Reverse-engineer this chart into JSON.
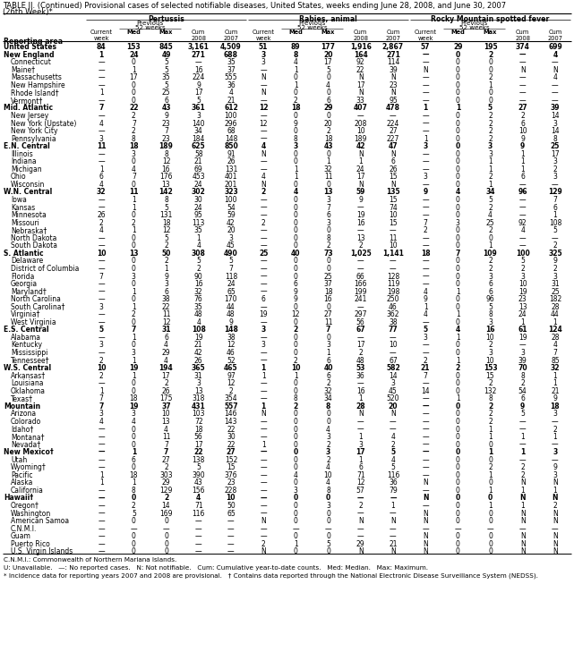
{
  "title1": "TABLE II. (Continued) Provisional cases of selected notifiable diseases, United States, weeks ending June 28, 2008, and June 30, 2007",
  "title2": "(26th Week)*",
  "rows": [
    [
      "United States",
      "84",
      "153",
      "845",
      "3,161",
      "4,509",
      "51",
      "89",
      "177",
      "1,916",
      "2,867",
      "57",
      "29",
      "195",
      "374",
      "699"
    ],
    [
      "New England",
      "1",
      "24",
      "49",
      "271",
      "688",
      "3",
      "8",
      "20",
      "164",
      "271",
      "—",
      "0",
      "2",
      "—",
      "4"
    ],
    [
      "Connecticut",
      "—",
      "0",
      "5",
      "—",
      "35",
      "3",
      "4",
      "17",
      "92",
      "114",
      "—",
      "0",
      "0",
      "—",
      "—"
    ],
    [
      "Maine†",
      "—",
      "1",
      "5",
      "16",
      "37",
      "—",
      "1",
      "5",
      "22",
      "39",
      "N",
      "0",
      "0",
      "N",
      "N"
    ],
    [
      "Massachusetts",
      "—",
      "17",
      "35",
      "224",
      "555",
      "N",
      "0",
      "0",
      "N",
      "N",
      "—",
      "0",
      "2",
      "—",
      "4"
    ],
    [
      "New Hampshire",
      "—",
      "0",
      "5",
      "9",
      "36",
      "—",
      "1",
      "4",
      "17",
      "23",
      "—",
      "0",
      "1",
      "—",
      "—"
    ],
    [
      "Rhode Island†",
      "1",
      "0",
      "25",
      "17",
      "4",
      "N",
      "0",
      "0",
      "N",
      "N",
      "—",
      "0",
      "0",
      "—",
      "—"
    ],
    [
      "Vermont†",
      "—",
      "0",
      "6",
      "5",
      "21",
      "—",
      "2",
      "6",
      "33",
      "95",
      "—",
      "0",
      "0",
      "—",
      "—"
    ],
    [
      "Mid. Atlantic",
      "7",
      "22",
      "43",
      "361",
      "612",
      "12",
      "18",
      "29",
      "407",
      "478",
      "1",
      "1",
      "5",
      "27",
      "39"
    ],
    [
      "New Jersey",
      "—",
      "2",
      "9",
      "3",
      "100",
      "—",
      "0",
      "0",
      "—",
      "—",
      "—",
      "0",
      "2",
      "2",
      "14"
    ],
    [
      "New York (Upstate)",
      "4",
      "7",
      "23",
      "140",
      "296",
      "12",
      "9",
      "20",
      "208",
      "224",
      "—",
      "0",
      "2",
      "6",
      "3"
    ],
    [
      "New York City",
      "—",
      "2",
      "7",
      "34",
      "68",
      "—",
      "0",
      "2",
      "10",
      "27",
      "—",
      "0",
      "2",
      "10",
      "14"
    ],
    [
      "Pennsylvania",
      "3",
      "8",
      "23",
      "184",
      "148",
      "—",
      "8",
      "18",
      "189",
      "227",
      "1",
      "0",
      "2",
      "9",
      "8"
    ],
    [
      "E.N. Central",
      "11",
      "18",
      "189",
      "625",
      "850",
      "4",
      "3",
      "43",
      "42",
      "47",
      "3",
      "0",
      "3",
      "9",
      "25"
    ],
    [
      "Illinois",
      "—",
      "3",
      "8",
      "58",
      "91",
      "N",
      "0",
      "0",
      "N",
      "N",
      "—",
      "0",
      "3",
      "1",
      "17"
    ],
    [
      "Indiana",
      "—",
      "0",
      "12",
      "21",
      "26",
      "—",
      "0",
      "1",
      "1",
      "6",
      "—",
      "0",
      "1",
      "1",
      "3"
    ],
    [
      "Michigan",
      "1",
      "4",
      "16",
      "69",
      "131",
      "—",
      "1",
      "32",
      "24",
      "26",
      "—",
      "0",
      "1",
      "1",
      "2"
    ],
    [
      "Ohio",
      "6",
      "7",
      "176",
      "453",
      "401",
      "4",
      "1",
      "11",
      "17",
      "15",
      "3",
      "0",
      "2",
      "6",
      "3"
    ],
    [
      "Wisconsin",
      "4",
      "0",
      "13",
      "24",
      "201",
      "N",
      "0",
      "0",
      "N",
      "N",
      "—",
      "0",
      "1",
      "—",
      "—"
    ],
    [
      "W.N. Central",
      "32",
      "11",
      "142",
      "302",
      "323",
      "2",
      "4",
      "13",
      "59",
      "135",
      "9",
      "4",
      "34",
      "96",
      "129"
    ],
    [
      "Iowa",
      "—",
      "1",
      "8",
      "30",
      "100",
      "—",
      "0",
      "3",
      "9",
      "15",
      "—",
      "0",
      "5",
      "—",
      "7"
    ],
    [
      "Kansas",
      "—",
      "1",
      "5",
      "24",
      "54",
      "—",
      "0",
      "7",
      "—",
      "74",
      "—",
      "0",
      "2",
      "—",
      "6"
    ],
    [
      "Minnesota",
      "26",
      "0",
      "131",
      "95",
      "59",
      "—",
      "0",
      "6",
      "19",
      "10",
      "—",
      "0",
      "4",
      "—",
      "1"
    ],
    [
      "Missouri",
      "2",
      "2",
      "18",
      "113",
      "42",
      "2",
      "0",
      "3",
      "16",
      "15",
      "7",
      "3",
      "25",
      "92",
      "108"
    ],
    [
      "Nebraska†",
      "4",
      "1",
      "12",
      "35",
      "20",
      "—",
      "0",
      "0",
      "—",
      "—",
      "2",
      "0",
      "2",
      "4",
      "5"
    ],
    [
      "North Dakota",
      "—",
      "0",
      "5",
      "1",
      "3",
      "—",
      "0",
      "8",
      "13",
      "11",
      "—",
      "0",
      "0",
      "—",
      "—"
    ],
    [
      "South Dakota",
      "—",
      "0",
      "2",
      "4",
      "45",
      "—",
      "0",
      "2",
      "2",
      "10",
      "—",
      "0",
      "1",
      "—",
      "2"
    ],
    [
      "S. Atlantic",
      "10",
      "13",
      "50",
      "308",
      "490",
      "25",
      "40",
      "73",
      "1,025",
      "1,141",
      "18",
      "7",
      "109",
      "100",
      "325"
    ],
    [
      "Delaware",
      "—",
      "0",
      "2",
      "5",
      "5",
      "—",
      "0",
      "0",
      "—",
      "—",
      "—",
      "0",
      "2",
      "5",
      "9"
    ],
    [
      "District of Columbia",
      "—",
      "0",
      "1",
      "2",
      "7",
      "—",
      "0",
      "0",
      "—",
      "—",
      "—",
      "0",
      "2",
      "2",
      "2"
    ],
    [
      "Florida",
      "7",
      "3",
      "9",
      "90",
      "118",
      "—",
      "0",
      "25",
      "66",
      "128",
      "—",
      "0",
      "3",
      "3",
      "3"
    ],
    [
      "Georgia",
      "—",
      "0",
      "3",
      "16",
      "24",
      "—",
      "6",
      "37",
      "166",
      "119",
      "—",
      "0",
      "6",
      "10",
      "31"
    ],
    [
      "Maryland†",
      "—",
      "1",
      "6",
      "32",
      "65",
      "—",
      "9",
      "18",
      "199",
      "198",
      "4",
      "1",
      "6",
      "19",
      "25"
    ],
    [
      "North Carolina",
      "—",
      "0",
      "38",
      "76",
      "170",
      "6",
      "9",
      "16",
      "241",
      "250",
      "9",
      "0",
      "96",
      "23",
      "182"
    ],
    [
      "South Carolina†",
      "3",
      "1",
      "22",
      "35",
      "44",
      "—",
      "0",
      "0",
      "—",
      "46",
      "1",
      "0",
      "5",
      "13",
      "28"
    ],
    [
      "Virginia†",
      "—",
      "2",
      "11",
      "48",
      "48",
      "19",
      "12",
      "27",
      "297",
      "362",
      "4",
      "1",
      "8",
      "24",
      "44"
    ],
    [
      "West Virginia",
      "—",
      "0",
      "12",
      "4",
      "9",
      "—",
      "0",
      "11",
      "56",
      "38",
      "—",
      "0",
      "3",
      "1",
      "1"
    ],
    [
      "E.S. Central",
      "5",
      "7",
      "31",
      "108",
      "148",
      "3",
      "2",
      "7",
      "67",
      "77",
      "5",
      "4",
      "16",
      "61",
      "124"
    ],
    [
      "Alabama",
      "—",
      "1",
      "6",
      "19",
      "38",
      "—",
      "0",
      "0",
      "—",
      "—",
      "3",
      "1",
      "10",
      "19",
      "28"
    ],
    [
      "Kentucky",
      "3",
      "0",
      "4",
      "21",
      "12",
      "3",
      "0",
      "3",
      "17",
      "10",
      "—",
      "0",
      "2",
      "—",
      "4"
    ],
    [
      "Mississippi",
      "—",
      "3",
      "29",
      "42",
      "46",
      "—",
      "0",
      "1",
      "2",
      "—",
      "—",
      "0",
      "3",
      "3",
      "7"
    ],
    [
      "Tennessee†",
      "2",
      "1",
      "4",
      "26",
      "52",
      "—",
      "2",
      "6",
      "48",
      "67",
      "2",
      "1",
      "10",
      "39",
      "85"
    ],
    [
      "W.S. Central",
      "10",
      "19",
      "194",
      "365",
      "465",
      "1",
      "10",
      "40",
      "53",
      "582",
      "21",
      "2",
      "153",
      "70",
      "32"
    ],
    [
      "Arkansas†",
      "2",
      "1",
      "17",
      "31",
      "97",
      "1",
      "1",
      "6",
      "36",
      "14",
      "7",
      "0",
      "15",
      "8",
      "1"
    ],
    [
      "Louisiana",
      "—",
      "0",
      "2",
      "3",
      "12",
      "—",
      "0",
      "2",
      "—",
      "3",
      "—",
      "0",
      "2",
      "2",
      "1"
    ],
    [
      "Oklahoma",
      "1",
      "0",
      "26",
      "13",
      "2",
      "—",
      "0",
      "32",
      "16",
      "45",
      "14",
      "0",
      "132",
      "54",
      "21"
    ],
    [
      "Texas†",
      "7",
      "18",
      "175",
      "318",
      "354",
      "—",
      "8",
      "34",
      "1",
      "520",
      "—",
      "1",
      "8",
      "6",
      "9"
    ],
    [
      "Mountain",
      "7",
      "19",
      "37",
      "431",
      "557",
      "1",
      "2",
      "8",
      "28",
      "20",
      "—",
      "0",
      "2",
      "9",
      "18"
    ],
    [
      "Arizona",
      "3",
      "3",
      "10",
      "103",
      "146",
      "N",
      "0",
      "0",
      "N",
      "N",
      "—",
      "0",
      "2",
      "5",
      "3"
    ],
    [
      "Colorado",
      "4",
      "4",
      "13",
      "72",
      "143",
      "—",
      "0",
      "0",
      "—",
      "—",
      "—",
      "0",
      "2",
      "—",
      "—"
    ],
    [
      "Idaho†",
      "—",
      "0",
      "4",
      "18",
      "22",
      "—",
      "0",
      "4",
      "—",
      "—",
      "—",
      "0",
      "1",
      "—",
      "2"
    ],
    [
      "Montana†",
      "—",
      "0",
      "11",
      "56",
      "30",
      "—",
      "0",
      "3",
      "1",
      "4",
      "—",
      "0",
      "1",
      "1",
      "1"
    ],
    [
      "Nevada†",
      "—",
      "0",
      "7",
      "17",
      "22",
      "1",
      "0",
      "2",
      "3",
      "2",
      "—",
      "0",
      "0",
      "—",
      "—"
    ],
    [
      "New Mexico†",
      "—",
      "1",
      "7",
      "22",
      "27",
      "—",
      "0",
      "3",
      "17",
      "5",
      "—",
      "0",
      "1",
      "1",
      "3"
    ],
    [
      "Utah",
      "—",
      "6",
      "27",
      "138",
      "152",
      "—",
      "0",
      "2",
      "1",
      "4",
      "—",
      "0",
      "0",
      "—",
      "—"
    ],
    [
      "Wyoming†",
      "—",
      "0",
      "2",
      "5",
      "15",
      "—",
      "0",
      "4",
      "6",
      "5",
      "—",
      "0",
      "2",
      "2",
      "9"
    ],
    [
      "Pacific",
      "1",
      "18",
      "303",
      "390",
      "376",
      "—",
      "4",
      "10",
      "71",
      "116",
      "—",
      "0",
      "1",
      "2",
      "3"
    ],
    [
      "Alaska",
      "1",
      "1",
      "29",
      "43",
      "23",
      "—",
      "0",
      "4",
      "12",
      "36",
      "N",
      "0",
      "0",
      "N",
      "N"
    ],
    [
      "California",
      "—",
      "8",
      "129",
      "156",
      "228",
      "—",
      "3",
      "8",
      "57",
      "79",
      "—",
      "0",
      "1",
      "1",
      "1"
    ],
    [
      "Hawaii†",
      "—",
      "0",
      "2",
      "4",
      "10",
      "—",
      "0",
      "0",
      "—",
      "—",
      "N",
      "0",
      "0",
      "N",
      "N"
    ],
    [
      "Oregon†",
      "—",
      "2",
      "14",
      "71",
      "50",
      "—",
      "0",
      "3",
      "2",
      "1",
      "—",
      "0",
      "1",
      "1",
      "2"
    ],
    [
      "Washington",
      "—",
      "5",
      "169",
      "116",
      "65",
      "—",
      "0",
      "0",
      "—",
      "—",
      "N",
      "0",
      "0",
      "N",
      "N"
    ],
    [
      "American Samoa",
      "—",
      "0",
      "0",
      "—",
      "—",
      "N",
      "0",
      "0",
      "N",
      "N",
      "N",
      "0",
      "0",
      "N",
      "N"
    ],
    [
      "C.N.M.I.",
      "—",
      "—",
      "—",
      "—",
      "—",
      "—",
      "—",
      "—",
      "—",
      "—",
      "—",
      "—",
      "—",
      "—",
      "—"
    ],
    [
      "Guam",
      "—",
      "0",
      "0",
      "—",
      "—",
      "—",
      "0",
      "0",
      "—",
      "—",
      "N",
      "0",
      "0",
      "N",
      "N"
    ],
    [
      "Puerto Rico",
      "—",
      "0",
      "0",
      "—",
      "—",
      "2",
      "1",
      "5",
      "29",
      "21",
      "N",
      "0",
      "0",
      "N",
      "N"
    ],
    [
      "U.S. Virgin Islands",
      "—",
      "0",
      "0",
      "—",
      "—",
      "N",
      "0",
      "0",
      "N",
      "N",
      "N",
      "0",
      "0",
      "N",
      "N"
    ]
  ],
  "bold_rows": [
    0,
    1,
    8,
    13,
    19,
    27,
    37,
    42,
    47,
    53,
    59
  ],
  "footnote1": "C.N.M.I.: Commonwealth of Northern Mariana Islands.",
  "footnote2": "U: Unavailable.   —: No reported cases.   N: Not notifiable.   Cum: Cumulative year-to-date counts.   Med: Median.   Max: Maximum.",
  "footnote3": "* Incidence data for reporting years 2007 and 2008 are provisional.   † Contains data reported through the National Electronic Disease Surveillance System (NEDSS)."
}
